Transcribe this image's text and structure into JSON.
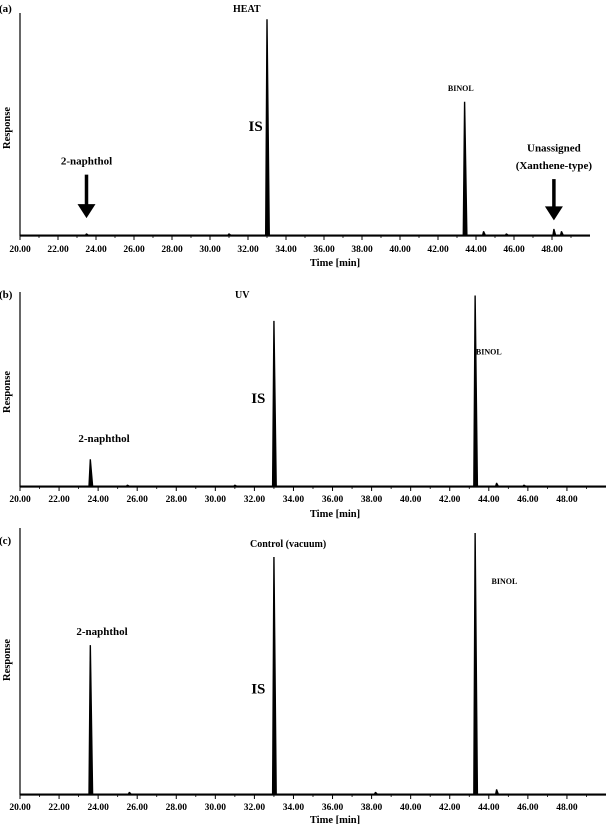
{
  "chart_data": [
    {
      "type": "line",
      "panel_label": "(a)",
      "title": "HEAT",
      "xlabel": "Time [min]",
      "ylabel": "Response",
      "xlim": [
        20,
        50
      ],
      "ylim": [
        0,
        1
      ],
      "x_ticks": [
        "20.00",
        "22.00",
        "24.00",
        "26.00",
        "28.00",
        "30.00",
        "32.00",
        "34.00",
        "36.00",
        "38.00",
        "40.00",
        "42.00",
        "44.00",
        "46.00",
        "48.00"
      ],
      "peaks": [
        {
          "x": 23.5,
          "y": 0.01
        },
        {
          "x": 31.0,
          "y": 0.01
        },
        {
          "x": 33.0,
          "y": 0.97
        },
        {
          "x": 43.4,
          "y": 0.6
        },
        {
          "x": 44.4,
          "y": 0.02
        },
        {
          "x": 45.6,
          "y": 0.01
        },
        {
          "x": 48.1,
          "y": 0.03
        },
        {
          "x": 48.5,
          "y": 0.02
        }
      ],
      "annotations": [
        {
          "text": "IS",
          "x": 32.4,
          "y": 0.47
        },
        {
          "text": "BINOL",
          "x": 43.2,
          "y": 0.65
        },
        {
          "text": "2-naphthol",
          "x": 23.5,
          "y": 0.32,
          "arrow": true,
          "arrow_to": [
            23.5,
            0.08
          ]
        },
        {
          "text": "Unassigned",
          "x": 48.1,
          "y": 0.38
        },
        {
          "text": "(Xanthene-type)",
          "x": 48.1,
          "y": 0.3,
          "arrow": true,
          "arrow_to": [
            48.1,
            0.07
          ]
        }
      ]
    },
    {
      "type": "line",
      "panel_label": "(b)",
      "title": "UV",
      "xlabel": "Time [min]",
      "ylabel": "Response",
      "xlim": [
        20,
        50
      ],
      "ylim": [
        0,
        1
      ],
      "x_ticks": [
        "20.00",
        "22.00",
        "24.00",
        "26.00",
        "28.00",
        "30.00",
        "32.00",
        "34.00",
        "36.00",
        "38.00",
        "40.00",
        "42.00",
        "44.00",
        "46.00",
        "48.00"
      ],
      "peaks": [
        {
          "x": 23.6,
          "y": 0.14
        },
        {
          "x": 25.5,
          "y": 0.01
        },
        {
          "x": 31.0,
          "y": 0.01
        },
        {
          "x": 33.0,
          "y": 0.85
        },
        {
          "x": 43.3,
          "y": 0.98
        },
        {
          "x": 44.4,
          "y": 0.02
        },
        {
          "x": 45.8,
          "y": 0.01
        }
      ],
      "annotations": [
        {
          "text": "IS",
          "x": 32.2,
          "y": 0.43
        },
        {
          "text": "BINOL",
          "x": 44.0,
          "y": 0.68
        },
        {
          "text": "2-naphthol",
          "x": 24.3,
          "y": 0.23
        }
      ]
    },
    {
      "type": "line",
      "panel_label": "(c)",
      "title": "Control (vacuum)",
      "xlabel": "Time [min]",
      "ylabel": "Response",
      "xlim": [
        20,
        50
      ],
      "ylim": [
        0,
        1
      ],
      "x_ticks": [
        "20.00",
        "22.00",
        "24.00",
        "26.00",
        "28.00",
        "30.00",
        "32.00",
        "34.00",
        "36.00",
        "38.00",
        "40.00",
        "42.00",
        "44.00",
        "46.00",
        "48.00"
      ],
      "peaks": [
        {
          "x": 23.6,
          "y": 0.56
        },
        {
          "x": 25.6,
          "y": 0.01
        },
        {
          "x": 33.0,
          "y": 0.89
        },
        {
          "x": 38.2,
          "y": 0.01
        },
        {
          "x": 43.3,
          "y": 0.98
        },
        {
          "x": 44.4,
          "y": 0.02
        }
      ],
      "annotations": [
        {
          "text": "IS",
          "x": 32.2,
          "y": 0.38
        },
        {
          "text": "BINOL",
          "x": 44.8,
          "y": 0.79
        },
        {
          "text": "2-naphthol",
          "x": 24.2,
          "y": 0.6
        }
      ]
    }
  ]
}
